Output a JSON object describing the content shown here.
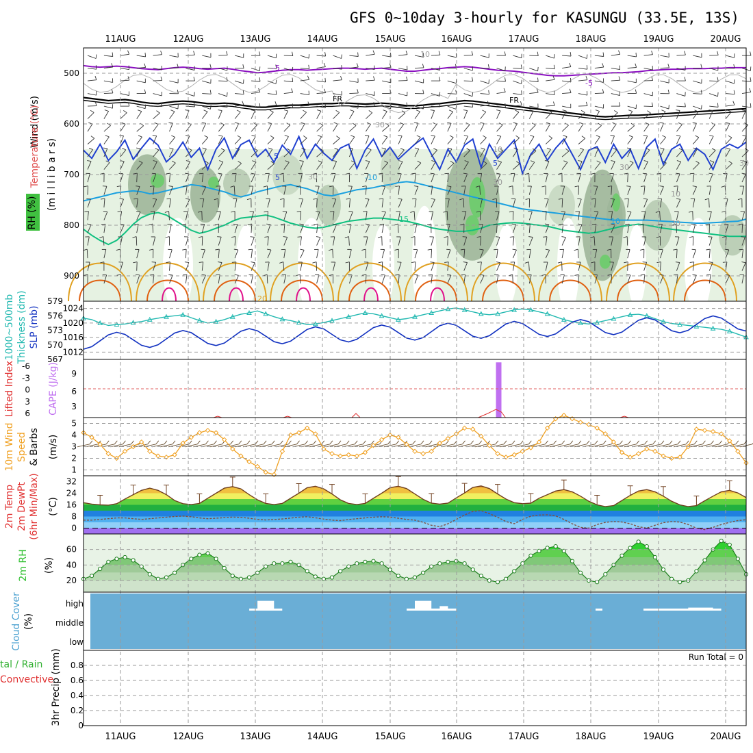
{
  "title": "GFS 0~10day 3-hourly for KASUNGU (33.5E, 13S)",
  "dates": [
    "11AUG",
    "12AUG",
    "13AUG",
    "14AUG",
    "15AUG",
    "16AUG",
    "17AUG",
    "18AUG",
    "19AUG",
    "20AUG"
  ],
  "panel_labels": {
    "upper": {
      "wind": "Wind (m/s)",
      "temperature": "Temperature (°C)",
      "rh": "RH (%)",
      "mb": "(m i l l i b a r s)"
    },
    "thickness": {
      "thk1": "1000~500mb",
      "thk2": "Thickness (dm)",
      "slp": "SLP (mb)"
    },
    "cape": {
      "li": "Lifted Index",
      "cape": "CAPE (J/kg)"
    },
    "wind10": {
      "l1": "10m Wind",
      "l2": "Speed",
      "l3": "& Barbs",
      "unit": "(m/s)"
    },
    "temp2m": {
      "l1": "2m Temp",
      "l2": "2m DewPt",
      "l3": "(6hr Min/Max)",
      "unit": "(°C)"
    },
    "rh2m": {
      "l1": "2m RH",
      "unit": "(%)"
    },
    "cloud": {
      "l1": "Cloud Cover",
      "unit": "(%)",
      "high": "high",
      "middle": "middle",
      "low": "low"
    },
    "precip": {
      "l1": "tal / Rain",
      "l2": "Convective",
      "l3": "3hr Precip (mm)",
      "run_total": "Run Total = 0"
    }
  },
  "colors": {
    "frame": "#000000",
    "grid": "#9a9a9a",
    "temp_m5": "#8a10c0",
    "temp_fr": "#000000",
    "temp_5": "#2040d0",
    "temp_10": "#1aa0e0",
    "temp_15": "#10c080",
    "temp_20": "#e0a020",
    "temp_25": "#e06010",
    "temp_30": "#e0108a",
    "thickness": "#20b8b0",
    "slp": "#1030c0",
    "cape": "#c070f0",
    "li": "#e03030",
    "wind_speed": "#f0a020",
    "rh2m": "#30c030",
    "cloud_bg": "#6aaed6",
    "temp_fill": [
      "#a070f0",
      "#90d0f8",
      "#50b0f0",
      "#2080e0",
      "#20b040",
      "#60d040",
      "#f0f060",
      "#f0c040",
      "#e08030"
    ]
  },
  "chart_data": {
    "type": "meteogram",
    "time_axis": {
      "start": "10AUG 12Z",
      "step_hours": 3,
      "points": 81,
      "labels": [
        "11AUG",
        "12AUG",
        "13AUG",
        "14AUG",
        "15AUG",
        "16AUG",
        "17AUG",
        "18AUG",
        "19AUG",
        "20AUG"
      ]
    },
    "upper_air": {
      "pressure_ticks": [
        "500",
        "600",
        "700",
        "800",
        "900"
      ],
      "ylim_mb": [
        450,
        950
      ],
      "contour_labels": [
        "-5",
        "-5",
        "FR",
        "FR",
        "5",
        "5",
        "5",
        "-10",
        "10",
        "15",
        "20"
      ],
      "rh_labels": [
        "10",
        "30",
        "30",
        "30",
        "10",
        "30",
        "10",
        "30",
        "30"
      ],
      "isotherms": [
        {
          "name": "-5",
          "mb": [
            485,
            487,
            488,
            487,
            486,
            487,
            489,
            491,
            492,
            493,
            491,
            489,
            488,
            489,
            491,
            492,
            491,
            490,
            492,
            495,
            497,
            499,
            498,
            496,
            494,
            493,
            493,
            494,
            493,
            492,
            491,
            490,
            490,
            491,
            492,
            491,
            490,
            492,
            494,
            496,
            496,
            494,
            492,
            491,
            489,
            488,
            487,
            488,
            490,
            492,
            494,
            495,
            496,
            498,
            500,
            502,
            504,
            505,
            505,
            504,
            503,
            502,
            501,
            500,
            499,
            499,
            498,
            497,
            495,
            494,
            493,
            492,
            492,
            491,
            491,
            491,
            490,
            490,
            489,
            489,
            489
          ]
        },
        {
          "name": "FR",
          "mb": [
            548,
            550,
            552,
            554,
            553,
            552,
            554,
            557,
            559,
            560,
            558,
            556,
            555,
            556,
            558,
            560,
            560,
            559,
            560,
            563,
            565,
            567,
            567,
            565,
            564,
            563,
            563,
            562,
            561,
            560,
            560,
            559,
            559,
            560,
            561,
            560,
            559,
            560,
            562,
            564,
            564,
            563,
            561,
            560,
            558,
            556,
            554,
            555,
            557,
            559,
            561,
            563,
            565,
            567,
            569,
            571,
            573,
            575,
            577,
            579,
            581,
            583,
            585,
            586,
            585,
            584,
            583,
            583,
            582,
            581,
            580,
            579,
            578,
            577,
            576,
            575,
            574,
            573,
            572,
            571,
            570
          ]
        },
        {
          "name": "5",
          "mb": [
            652,
            668,
            640,
            672,
            655,
            632,
            670,
            648,
            628,
            642,
            675,
            660,
            636,
            666,
            648,
            690,
            650,
            628,
            668,
            641,
            632,
            665,
            650,
            676,
            642,
            660,
            625,
            668,
            640,
            658,
            672,
            648,
            640,
            688,
            652,
            630,
            664,
            646,
            670,
            655,
            640,
            628,
            660,
            690,
            650,
            675,
            642,
            630,
            686,
            640,
            668,
            650,
            632,
            698,
            660,
            640,
            672,
            648,
            630,
            660,
            690,
            652,
            645,
            676,
            640,
            668,
            650,
            688,
            646,
            630,
            680,
            650,
            640,
            672,
            648,
            660,
            690,
            650,
            640,
            648,
            636
          ]
        },
        {
          "name": "10",
          "mb": [
            752,
            748,
            744,
            740,
            736,
            734,
            732,
            734,
            738,
            736,
            732,
            728,
            724,
            720,
            722,
            726,
            730,
            734,
            740,
            744,
            740,
            734,
            730,
            726,
            722,
            720,
            724,
            728,
            734,
            740,
            742,
            738,
            734,
            730,
            728,
            726,
            722,
            720,
            716,
            714,
            716,
            720,
            724,
            728,
            732,
            736,
            740,
            744,
            748,
            752,
            756,
            760,
            764,
            768,
            770,
            772,
            774,
            776,
            778,
            780,
            782,
            784,
            786,
            788,
            790,
            790,
            790,
            790,
            790,
            791,
            792,
            793,
            794,
            795,
            796,
            796,
            795,
            794,
            793,
            792,
            788
          ]
        },
        {
          "name": "15",
          "mb": [
            808,
            820,
            830,
            838,
            830,
            815,
            798,
            785,
            778,
            775,
            780,
            790,
            800,
            810,
            816,
            812,
            806,
            800,
            792,
            786,
            784,
            782,
            780,
            784,
            790,
            796,
            800,
            804,
            806,
            804,
            800,
            796,
            792,
            790,
            788,
            786,
            786,
            788,
            790,
            792,
            796,
            800,
            805,
            808,
            810,
            812,
            812,
            810,
            806,
            800,
            798,
            796,
            795,
            796,
            798,
            800,
            802,
            806,
            810,
            812,
            814,
            816,
            814,
            810,
            806,
            802,
            800,
            798,
            800,
            803,
            806,
            808,
            810,
            812,
            814,
            816,
            818,
            820,
            822,
            822,
            822
          ]
        }
      ]
    },
    "thickness_slp": {
      "thickness_ticks": [
        "579",
        "576",
        "573",
        "570",
        "567"
      ],
      "thickness_ylim": [
        567,
        579
      ],
      "slp_ticks": [
        "1024",
        "1020",
        "1016",
        "1012"
      ],
      "slp_ylim": [
        1010,
        1026
      ],
      "thickness_dm": [
        575.5,
        575.2,
        574.5,
        574,
        574.2,
        574.3,
        574.6,
        574.8,
        575.2,
        575.5,
        575.8,
        576,
        576.2,
        575.6,
        575,
        574.5,
        574.8,
        575.2,
        575.8,
        576.3,
        576.6,
        577,
        576.4,
        575.8,
        575.3,
        575,
        574.6,
        574.2,
        574.3,
        574.6,
        575,
        575.4,
        575.8,
        576.2,
        576.6,
        576.4,
        576,
        575.6,
        575.2,
        575.4,
        575.8,
        576.2,
        576.6,
        577,
        577.4,
        577.6,
        577.2,
        576.8,
        576.4,
        576.2,
        576.4,
        576.8,
        577.2,
        577.4,
        577.2,
        576.8,
        576.4,
        575.8,
        575.2,
        574.8,
        574.5,
        574.3,
        574.6,
        575,
        575.4,
        575.8,
        576.2,
        576.3,
        576,
        575.4,
        574.8,
        574.4,
        574.2,
        574,
        573.8,
        573.6,
        573.4,
        573.2,
        572.8,
        572.2,
        571.6
      ]
    },
    "cape_li": {
      "li_ticks": [
        "-6",
        "-3",
        "0",
        "3",
        "6"
      ],
      "cape_ticks": [
        "9",
        "6",
        "3"
      ],
      "cape_spike": {
        "time_index": 47,
        "height_fraction": 0.95
      }
    },
    "wind10m": {
      "ticks": [
        "5",
        "4",
        "3",
        "2",
        "1"
      ],
      "ylim": [
        0.5,
        5.5
      ],
      "speed": [
        4.2,
        3.8,
        3.2,
        2.4,
        2,
        2.6,
        3,
        3.4,
        2.6,
        2.2,
        2.1,
        2.3,
        3.3,
        3.8,
        4.2,
        4.4,
        4.2,
        3.6,
        2.8,
        2.2,
        1.7,
        1.3,
        0.8,
        0.6,
        2.6,
        4,
        4.2,
        4.6,
        4.1,
        2.8,
        2.4,
        2.2,
        2.3,
        2.2,
        2.5,
        3.1,
        3.6,
        4,
        3.8,
        3.2,
        2.6,
        2.4,
        2.6,
        3.3,
        3.7,
        4.1,
        4.6,
        4.5,
        3.9,
        3.1,
        2.4,
        2.1,
        2.3,
        2.6,
        2.9,
        3.4,
        4.6,
        5.4,
        5.7,
        5.4,
        5.1,
        4.9,
        4.6,
        4.1,
        3.4,
        2.5,
        2.1,
        2.4,
        2.8,
        2.6,
        2.2,
        2,
        2.1,
        3,
        4.5,
        4.4,
        4.3,
        4.1,
        3.5,
        2.6,
        1.6
      ]
    },
    "temp2m": {
      "ticks": [
        "32",
        "24",
        "16",
        "8",
        "0"
      ],
      "ylim": [
        -4,
        36
      ],
      "temperature_c": [
        17.5,
        16.5,
        16,
        15.8,
        16.8,
        20,
        23,
        26,
        27.5,
        26,
        23,
        19,
        16.8,
        16.2,
        17,
        20.5,
        24,
        27.5,
        28.5,
        27,
        23,
        19.5,
        17,
        16.2,
        17,
        20.5,
        24,
        27.8,
        28.8,
        27,
        23.5,
        19.5,
        17,
        16.2,
        17,
        20.5,
        24,
        27.8,
        28.8,
        27.2,
        23.5,
        19.8,
        17.2,
        16.5,
        17.2,
        20.8,
        24.2,
        28,
        29,
        27.2,
        23.5,
        20,
        17.5,
        16.8,
        17.2,
        20.5,
        23,
        25.5,
        26.5,
        25,
        22,
        18.5,
        16,
        14.8,
        15.5,
        19,
        22.5,
        25.5,
        26.5,
        25,
        22,
        18.5,
        16,
        14.8,
        15.5,
        18.8,
        22,
        25,
        26,
        24.2,
        21
      ],
      "dewpoint_c": [
        5.5,
        5.5,
        6,
        6.5,
        7,
        7,
        6.5,
        6,
        6.5,
        7,
        7.5,
        8,
        8.3,
        7.8,
        7,
        6.5,
        6.8,
        7.2,
        7.6,
        7.4,
        6.8,
        6,
        5.6,
        5.9,
        6.3,
        6.9,
        7.5,
        7.8,
        7.1,
        6.2,
        5.5,
        5.2,
        5.9,
        6.5,
        7,
        7.5,
        7.8,
        7.6,
        6.8,
        6,
        5.5,
        4,
        2,
        1,
        3,
        6,
        9,
        11.5,
        12,
        10,
        7.5,
        4.5,
        3,
        6,
        8.2,
        9,
        9.2,
        8.4,
        6,
        3,
        0.5,
        0,
        2.5,
        4,
        4.5,
        4.2,
        3,
        1,
        0,
        2,
        3.8,
        4.5,
        4.2,
        2.5,
        0,
        -1,
        0.5,
        2.5,
        4,
        5.2,
        5.8
      ]
    },
    "rh2m": {
      "ticks": [
        "60",
        "40",
        "20"
      ],
      "ylim": [
        5,
        80
      ],
      "rh_percent": [
        22,
        26,
        35,
        44,
        48,
        50,
        46,
        38,
        28,
        22,
        24,
        30,
        40,
        48,
        53,
        55,
        48,
        36,
        26,
        22,
        24,
        30,
        38,
        42,
        42,
        44,
        40,
        32,
        25,
        22,
        24,
        32,
        38,
        42,
        44,
        45,
        42,
        34,
        26,
        22,
        24,
        30,
        38,
        42,
        44,
        45,
        42,
        34,
        26,
        20,
        18,
        22,
        32,
        42,
        52,
        58,
        62,
        64,
        58,
        45,
        30,
        20,
        18,
        28,
        40,
        52,
        62,
        70,
        64,
        50,
        34,
        22,
        18,
        20,
        32,
        46,
        60,
        71,
        66,
        48,
        28
      ]
    },
    "cloud_cover": {
      "levels": [
        "high",
        "middle",
        "low"
      ],
      "high_cloud_blocks": [
        {
          "start": 21,
          "end": 23,
          "height": 0.65
        },
        {
          "start": 40,
          "end": 42,
          "height": 0.65
        },
        {
          "start": 43,
          "end": 44,
          "height": 0.3
        },
        {
          "start": 73,
          "end": 76,
          "height": 0.2
        }
      ]
    },
    "precip": {
      "ticks": [
        "0.8",
        "0.6",
        "0.4",
        "0.2",
        "0"
      ],
      "ylim": [
        0,
        1
      ],
      "run_total": "Run Total = 0",
      "values_mm": 0
    }
  }
}
